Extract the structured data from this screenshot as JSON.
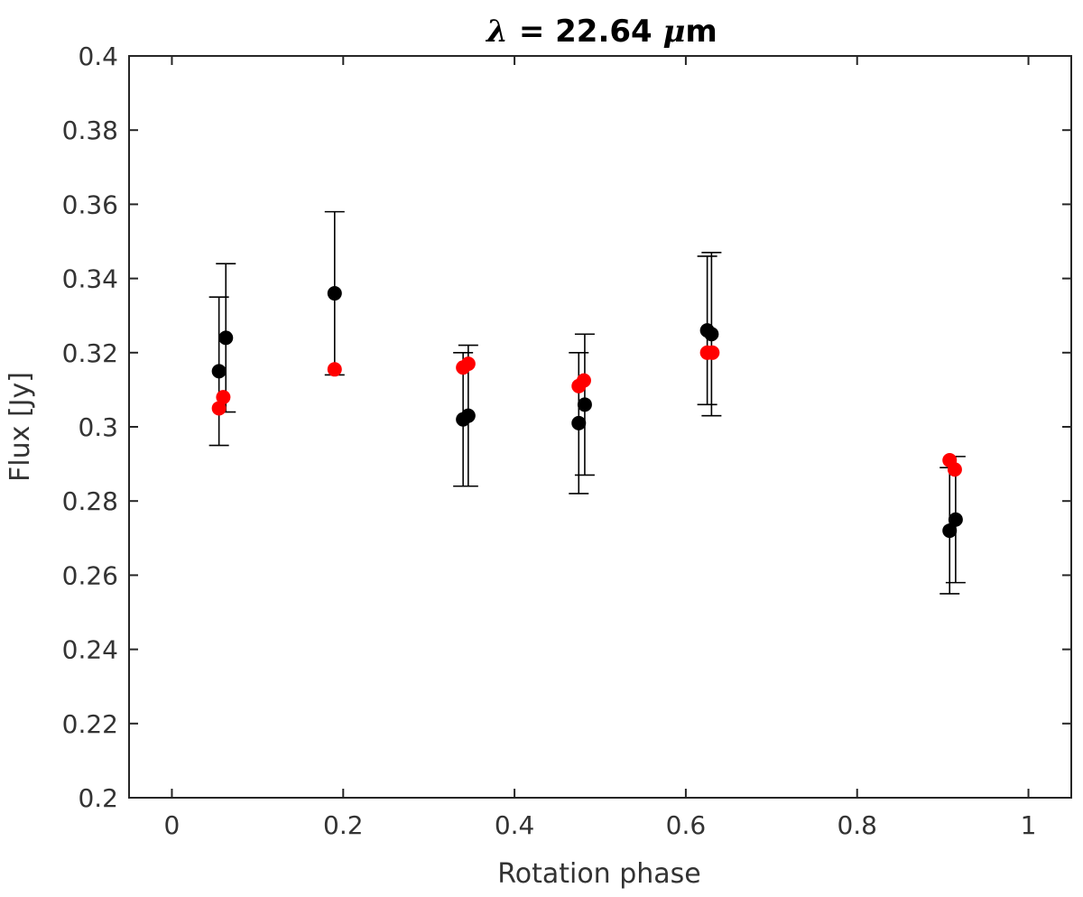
{
  "chart_data": {
    "type": "scatter",
    "title": {
      "symbol": "λ",
      "text": " = 22.64 ",
      "unit_prefix": "μ",
      "unit": "m"
    },
    "xlabel": "Rotation phase",
    "ylabel": "Flux [Jy]",
    "xlim": [
      -0.05,
      1.05
    ],
    "ylim": [
      0.2,
      0.4
    ],
    "x_ticks": [
      0,
      0.2,
      0.4,
      0.6,
      0.8,
      1
    ],
    "x_tick_labels": [
      "0",
      "0.2",
      "0.4",
      "0.6",
      "0.8",
      "1"
    ],
    "y_ticks": [
      0.2,
      0.22,
      0.24,
      0.26,
      0.28,
      0.3,
      0.32,
      0.34,
      0.36,
      0.38,
      0.4
    ],
    "y_tick_labels": [
      "0.2",
      "0.22",
      "0.24",
      "0.26",
      "0.28",
      "0.3",
      "0.32",
      "0.34",
      "0.36",
      "0.38",
      "0.4"
    ],
    "grid": false,
    "series": [
      {
        "color": "#000000",
        "marker": "circle",
        "points": [
          {
            "x": 0.055,
            "y": 0.315,
            "lo": 0.295,
            "hi": 0.335
          },
          {
            "x": 0.063,
            "y": 0.324,
            "lo": 0.304,
            "hi": 0.344
          },
          {
            "x": 0.19,
            "y": 0.336,
            "lo": 0.314,
            "hi": 0.358
          },
          {
            "x": 0.34,
            "y": 0.302,
            "lo": 0.284,
            "hi": 0.32
          },
          {
            "x": 0.346,
            "y": 0.303,
            "lo": 0.284,
            "hi": 0.322
          },
          {
            "x": 0.475,
            "y": 0.301,
            "lo": 0.282,
            "hi": 0.32
          },
          {
            "x": 0.482,
            "y": 0.306,
            "lo": 0.287,
            "hi": 0.325
          },
          {
            "x": 0.625,
            "y": 0.326,
            "lo": 0.306,
            "hi": 0.346
          },
          {
            "x": 0.63,
            "y": 0.325,
            "lo": 0.303,
            "hi": 0.347
          },
          {
            "x": 0.908,
            "y": 0.272,
            "lo": 0.255,
            "hi": 0.289
          },
          {
            "x": 0.915,
            "y": 0.275,
            "lo": 0.258,
            "hi": 0.292
          }
        ]
      },
      {
        "color": "#ff0000",
        "marker": "circle",
        "points": [
          {
            "x": 0.055,
            "y": 0.305
          },
          {
            "x": 0.06,
            "y": 0.308
          },
          {
            "x": 0.19,
            "y": 0.3155
          },
          {
            "x": 0.34,
            "y": 0.316
          },
          {
            "x": 0.346,
            "y": 0.317
          },
          {
            "x": 0.475,
            "y": 0.311
          },
          {
            "x": 0.481,
            "y": 0.3125
          },
          {
            "x": 0.625,
            "y": 0.32
          },
          {
            "x": 0.631,
            "y": 0.32
          },
          {
            "x": 0.908,
            "y": 0.291
          },
          {
            "x": 0.914,
            "y": 0.2885
          }
        ]
      }
    ]
  }
}
